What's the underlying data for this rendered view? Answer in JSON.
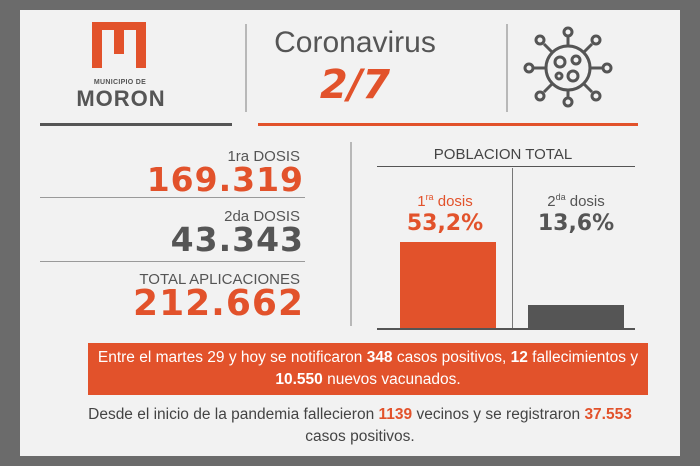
{
  "logo": {
    "small_text": "MUNICIPIO DE",
    "name": "MORON",
    "icon": "moron-logo-icon"
  },
  "header": {
    "title": "Coronavirus",
    "date": "2/7",
    "icon": "virus-icon"
  },
  "doses": {
    "first_label": "1ra DOSIS",
    "first_value": "169.319",
    "second_label": "2da DOSIS",
    "second_value": "43.343",
    "total_label": "TOTAL APLICACIONES",
    "total_value": "212.662"
  },
  "population": {
    "title": "POBLACION TOTAL",
    "first_num": "1",
    "first_sup": "ra",
    "first_word": " dosis",
    "first_pct": "53,2%",
    "second_num": "2",
    "second_sup": "da",
    "second_word": " dosis",
    "second_pct": "13,6%"
  },
  "chart_data": {
    "type": "bar",
    "categories": [
      "1ra dosis",
      "2da dosis"
    ],
    "values": [
      53.2,
      13.6
    ],
    "title": "POBLACION TOTAL"
  },
  "banner": {
    "p1": "Entre el martes 29 y hoy se notificaron ",
    "n1": "348",
    "p2": " casos positivos, ",
    "n2": "12",
    "p3": "  fallecimientos y ",
    "n3": "10.550",
    "p4": " nuevos vacunados."
  },
  "footer": {
    "p1": "Desde el inicio de la pandemia fallecieron ",
    "n1": "1139",
    "p2": " vecinos y se registraron ",
    "n2": "37.553",
    "p3": " casos positivos."
  },
  "colors": {
    "accent": "#e2522b",
    "dark": "#555555",
    "frame": "#6b6b6b",
    "card": "#f2f2f2"
  }
}
